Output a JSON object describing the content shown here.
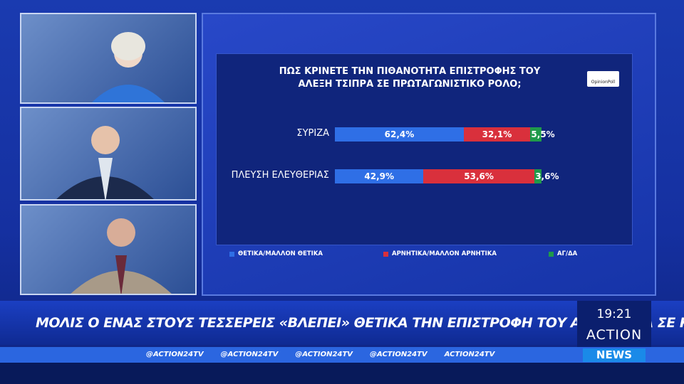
{
  "chart_data": {
    "type": "stacked_bar_h",
    "title": "ΠΩΣ ΚΡΙΝΕΤΕ ΤΗΝ ΠΙΘΑΝΟΤΗΤΑ ΕΠΙΣΤΡΟΦΗΣ ΤΟΥ ΑΛΕΞΗ ΤΣΙΠΡΑ ΣΕ ΠΡΩΤΑΓΩΝΙΣΤΙΚΟ ΡΟΛΟ;",
    "categories": [
      "ΣΥΡΙΖΑ",
      "ΠΛΕΥΣΗ ΕΛΕΥΘΕΡΙΑΣ"
    ],
    "series": [
      {
        "name": "ΘΕΤΙΚΑ/ΜΑΛΛΟΝ ΘΕΤΙΚΑ",
        "color": "#2f6fe6",
        "values": [
          62.4,
          42.9
        ],
        "value_labels": [
          "62,4%",
          "42,9%"
        ]
      },
      {
        "name": "ΑΡΝΗΤΙΚΑ/ΜΑΛΛΟΝ ΑΡΝΗΤΙΚΑ",
        "color": "#d9303c",
        "values": [
          32.1,
          53.6
        ],
        "value_labels": [
          "32,1%",
          "53,6%"
        ]
      },
      {
        "name": "ΑΓ/ΔΑ",
        "color": "#1f9a4a",
        "values": [
          5.5,
          3.6
        ],
        "value_labels": [
          "5,5%",
          "3,6%"
        ]
      }
    ],
    "xlim": [
      0,
      100
    ]
  },
  "poll_logo": "OpinionPoll",
  "ticker": {
    "headline": "ΜΟΛΙΣ Ο ΕΝΑΣ ΣΤΟΥΣ ΤΕΣΣΕΡΕΙΣ «ΒΛΕΠΕΙ» ΘΕΤΙΚΑ ΤΗΝ ΕΠΙΣΤΡΟΦΗ ΤΟΥ ΑΛ. ΤΣΙΠΡΑ ΣΕ ΚΕΝΤΡΙΚΟ ΡΟΛΟ",
    "clock": "19:21",
    "brand": "ACTION",
    "brand_sub": "NEWS",
    "socials": [
      "@ACTION24TV",
      "@ACTION24TV",
      "@ACTION24TV",
      "@ACTION24TV",
      "ACTION24TV"
    ]
  }
}
